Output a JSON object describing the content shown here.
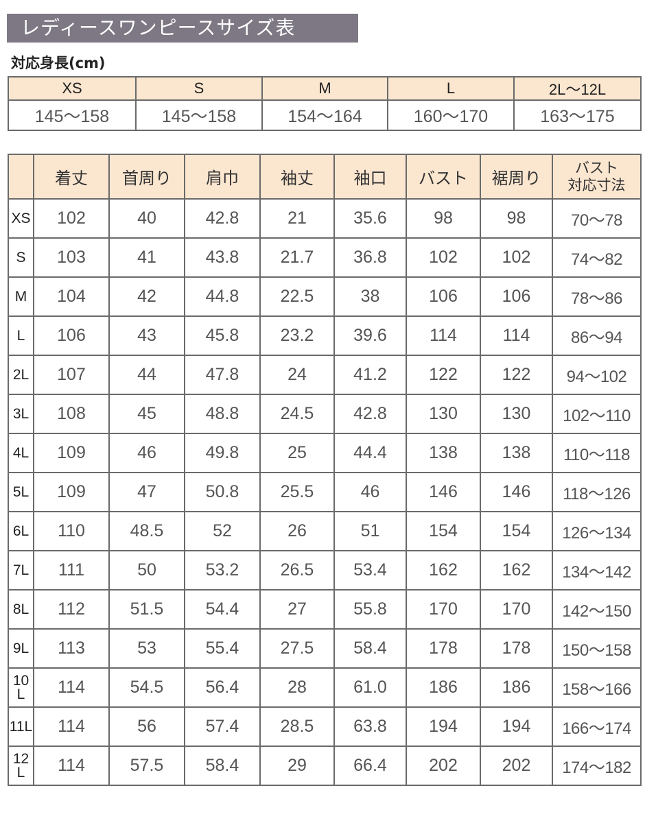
{
  "title": "レディースワンピースサイズ表",
  "height_section": {
    "label": "対応身長(cm)",
    "sizes": [
      "XS",
      "S",
      "M",
      "L",
      "2L〜12L"
    ],
    "heights": [
      "145〜158",
      "145〜158",
      "154〜164",
      "160〜170",
      "163〜175"
    ]
  },
  "size_table": {
    "headers": [
      "",
      "着丈",
      "首周り",
      "肩巾",
      "袖丈",
      "袖口",
      "バスト",
      "裾周り",
      "バスト\n対応寸法"
    ],
    "rows": [
      [
        "XS",
        "102",
        "40",
        "42.8",
        "21",
        "35.6",
        "98",
        "98",
        "70〜78"
      ],
      [
        "S",
        "103",
        "41",
        "43.8",
        "21.7",
        "36.8",
        "102",
        "102",
        "74〜82"
      ],
      [
        "M",
        "104",
        "42",
        "44.8",
        "22.5",
        "38",
        "106",
        "106",
        "78〜86"
      ],
      [
        "L",
        "106",
        "43",
        "45.8",
        "23.2",
        "39.6",
        "114",
        "114",
        "86〜94"
      ],
      [
        "2L",
        "107",
        "44",
        "47.8",
        "24",
        "41.2",
        "122",
        "122",
        "94〜102"
      ],
      [
        "3L",
        "108",
        "45",
        "48.8",
        "24.5",
        "42.8",
        "130",
        "130",
        "102〜110"
      ],
      [
        "4L",
        "109",
        "46",
        "49.8",
        "25",
        "44.4",
        "138",
        "138",
        "110〜118"
      ],
      [
        "5L",
        "109",
        "47",
        "50.8",
        "25.5",
        "46",
        "146",
        "146",
        "118〜126"
      ],
      [
        "6L",
        "110",
        "48.5",
        "52",
        "26",
        "51",
        "154",
        "154",
        "126〜134"
      ],
      [
        "7L",
        "111",
        "50",
        "53.2",
        "26.5",
        "53.4",
        "162",
        "162",
        "134〜142"
      ],
      [
        "8L",
        "112",
        "51.5",
        "54.4",
        "27",
        "55.8",
        "170",
        "170",
        "142〜150"
      ],
      [
        "9L",
        "113",
        "53",
        "55.4",
        "27.5",
        "58.4",
        "178",
        "178",
        "150〜158"
      ],
      [
        "10L",
        "114",
        "54.5",
        "56.4",
        "28",
        "61.0",
        "186",
        "186",
        "158〜166"
      ],
      [
        "11L",
        "114",
        "56",
        "57.4",
        "28.5",
        "63.8",
        "194",
        "194",
        "166〜174"
      ],
      [
        "12L",
        "114",
        "57.5",
        "58.4",
        "29",
        "66.4",
        "202",
        "202",
        "174〜182"
      ]
    ]
  },
  "colors": {
    "title_bg": "#7d7883",
    "header_bg": "#fbe6d0",
    "border": "#6a6a6a",
    "text": "#555555"
  }
}
